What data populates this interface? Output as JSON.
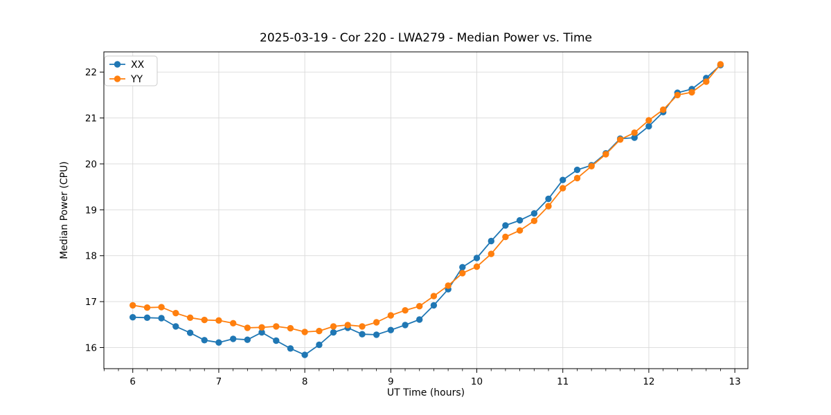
{
  "chart_data": {
    "type": "line",
    "title": "2025-03-19 - Cor 220 - LWA279 - Median Power vs. Time",
    "xlabel": "UT Time (hours)",
    "ylabel": "Median Power (CPU)",
    "xlim": [
      5.664,
      13.152
    ],
    "ylim": [
      15.54,
      22.44
    ],
    "x_ticks": [
      6,
      7,
      8,
      9,
      10,
      11,
      12,
      13
    ],
    "y_ticks": [
      16,
      17,
      18,
      19,
      20,
      21,
      22
    ],
    "x_minor_ticks_per_hour": 6,
    "grid": true,
    "grid_color": "#d9d9d9",
    "legend_position": "upper left",
    "x": [
      6.0,
      6.167,
      6.333,
      6.5,
      6.667,
      6.833,
      7.0,
      7.167,
      7.333,
      7.5,
      7.667,
      7.833,
      8.0,
      8.167,
      8.333,
      8.5,
      8.667,
      8.833,
      9.0,
      9.167,
      9.333,
      9.5,
      9.667,
      9.833,
      10.0,
      10.167,
      10.333,
      10.5,
      10.667,
      10.833,
      11.0,
      11.167,
      11.333,
      11.5,
      11.667,
      11.833,
      12.0,
      12.167,
      12.333,
      12.5,
      12.667,
      12.833
    ],
    "series": [
      {
        "name": "XX",
        "color": "#1f77b4",
        "values": [
          16.66,
          16.65,
          16.64,
          16.46,
          16.32,
          16.16,
          16.11,
          16.19,
          16.17,
          16.33,
          16.15,
          15.98,
          15.84,
          16.06,
          16.33,
          16.43,
          16.29,
          16.28,
          16.38,
          16.49,
          16.61,
          16.92,
          17.27,
          17.75,
          17.95,
          18.32,
          18.66,
          18.77,
          18.92,
          19.24,
          19.65,
          19.87,
          19.97,
          20.23,
          20.55,
          20.57,
          20.82,
          21.13,
          21.55,
          21.63,
          21.87,
          22.15
        ]
      },
      {
        "name": "YY",
        "color": "#ff7f0e",
        "values": [
          16.92,
          16.87,
          16.88,
          16.75,
          16.65,
          16.6,
          16.59,
          16.53,
          16.43,
          16.44,
          16.46,
          16.42,
          16.34,
          16.36,
          16.46,
          16.49,
          16.46,
          16.55,
          16.7,
          16.81,
          16.9,
          17.12,
          17.35,
          17.62,
          17.76,
          18.04,
          18.41,
          18.55,
          18.76,
          19.08,
          19.47,
          19.69,
          19.95,
          20.21,
          20.53,
          20.68,
          20.95,
          21.18,
          21.5,
          21.56,
          21.79,
          22.17
        ]
      }
    ]
  }
}
